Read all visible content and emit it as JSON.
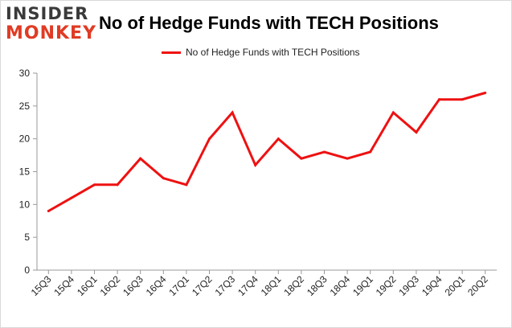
{
  "logo": {
    "line1": "INSIDER",
    "line2": "MONKEY"
  },
  "chart_data": {
    "type": "line",
    "title": "No of Hedge Funds with TECH Positions",
    "xlabel": "",
    "ylabel": "",
    "categories": [
      "15Q3",
      "15Q4",
      "16Q1",
      "16Q2",
      "16Q3",
      "16Q4",
      "17Q1",
      "17Q2",
      "17Q3",
      "17Q4",
      "18Q1",
      "18Q2",
      "18Q3",
      "18Q4",
      "19Q1",
      "19Q2",
      "19Q3",
      "19Q4",
      "20Q1",
      "20Q2"
    ],
    "series": [
      {
        "name": "No of Hedge Funds with TECH  Positions",
        "values": [
          9,
          11,
          13,
          13,
          17,
          14,
          13,
          20,
          24,
          16,
          20,
          17,
          18,
          17,
          18,
          24,
          21,
          26,
          26,
          27
        ],
        "color": "#ee1111"
      }
    ],
    "ylim": [
      0,
      30
    ],
    "yticks": [
      0,
      5,
      10,
      15,
      20,
      25,
      30
    ],
    "grid": false,
    "legend_position": "top-center"
  }
}
